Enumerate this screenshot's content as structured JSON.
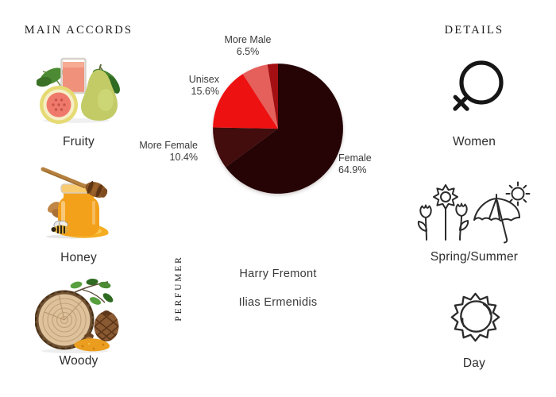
{
  "left_panel": {
    "heading": "MAIN ACCORDS",
    "accords": [
      {
        "name": "Fruity",
        "illustration": "guava-fruit-and-juice-photo"
      },
      {
        "name": "Honey",
        "illustration": "honey-jar-dipper-bee-photo"
      },
      {
        "name": "Woody",
        "illustration": "wood-slice-pine-cone-photo"
      }
    ]
  },
  "chart_data": {
    "type": "pie",
    "title": "",
    "slices": [
      {
        "label": "Female",
        "value": 64.9,
        "color": "#260406"
      },
      {
        "label": "More Female",
        "value": 10.4,
        "color": "#430c0d"
      },
      {
        "label": "Unisex",
        "value": 15.6,
        "color": "#ee1111"
      },
      {
        "label": "More Male",
        "value": 6.5,
        "color": "#e55f5b"
      },
      {
        "label": "",
        "value": 2.6,
        "color": "#a30f12"
      }
    ],
    "start_angle_deg": -90,
    "direction": "clockwise",
    "labels_position": "outside-callouts",
    "legend": "none"
  },
  "perfumer": {
    "heading": "PERFUMER",
    "names": [
      "Harry Fremont",
      "Ilias Ermenidis"
    ]
  },
  "right_panel": {
    "heading": "DETAILS",
    "details": [
      {
        "label": "Women",
        "icon": "female-symbol-icon"
      },
      {
        "label": "Spring/Summer",
        "icon": "flowers-umbrella-sun-icon"
      },
      {
        "label": "Day",
        "icon": "sun-icon"
      }
    ]
  }
}
